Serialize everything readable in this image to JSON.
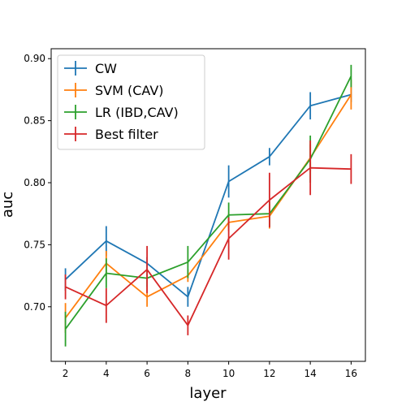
{
  "chart_data": {
    "type": "line",
    "xlabel": "layer",
    "ylabel": "auc",
    "xlim": [
      1.3,
      16.7
    ],
    "ylim": [
      0.656,
      0.908
    ],
    "x_ticks": [
      2,
      4,
      6,
      8,
      10,
      12,
      14,
      16
    ],
    "y_ticks": [
      0.7,
      0.75,
      0.8,
      0.85,
      0.9
    ],
    "y_tick_labels": [
      "0.70",
      "0.75",
      "0.80",
      "0.85",
      "0.90"
    ],
    "grid": false,
    "legend_position": "top-left",
    "x": [
      2,
      4,
      6,
      8,
      10,
      12,
      14,
      16
    ],
    "series": [
      {
        "name": "CW",
        "color": "#1f77b4",
        "values": [
          0.722,
          0.753,
          0.735,
          0.708,
          0.801,
          0.821,
          0.862,
          0.871
        ],
        "errors": [
          0.009,
          0.012,
          0.005,
          0.008,
          0.013,
          0.007,
          0.011,
          0.006
        ]
      },
      {
        "name": "SVM (CAV)",
        "color": "#ff7f0e",
        "values": [
          0.691,
          0.735,
          0.708,
          0.725,
          0.768,
          0.773,
          0.82,
          0.871
        ],
        "errors": [
          0.012,
          0.01,
          0.008,
          0.005,
          0.007,
          0.01,
          0.011,
          0.012
        ]
      },
      {
        "name": "LR (IBD,CAV)",
        "color": "#2ca02c",
        "values": [
          0.682,
          0.727,
          0.723,
          0.736,
          0.774,
          0.775,
          0.819,
          0.886
        ],
        "errors": [
          0.014,
          0.012,
          0.007,
          0.013,
          0.01,
          0.01,
          0.019,
          0.009
        ]
      },
      {
        "name": "Best filter",
        "color": "#d62728",
        "values": [
          0.716,
          0.701,
          0.73,
          0.685,
          0.755,
          0.786,
          0.812,
          0.811
        ],
        "errors": [
          0.01,
          0.014,
          0.019,
          0.008,
          0.017,
          0.022,
          0.022,
          0.012
        ]
      }
    ]
  }
}
